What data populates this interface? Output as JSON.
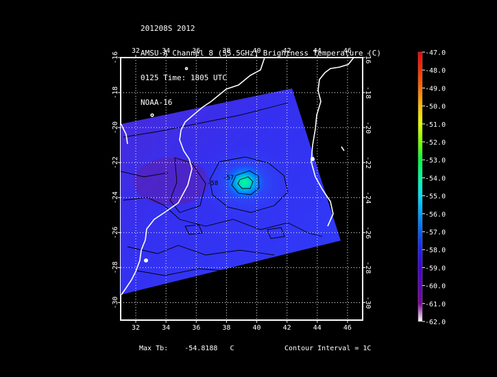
{
  "header": {
    "line1": "201208S 2012",
    "line2": "AMSU-A Channel 8 (55.5GHz) Brightness Temperature (C)",
    "line3": "0125 Time: 1805 UTC",
    "line4": "NOAA-16"
  },
  "map": {
    "lon_range": [
      31,
      47
    ],
    "lat_range": [
      -31,
      -16
    ],
    "lon_ticks": [
      "32",
      "34",
      "36",
      "38",
      "40",
      "42",
      "44",
      "46"
    ],
    "lat_ticks": [
      "-16",
      "-18",
      "-20",
      "-22",
      "-24",
      "-26",
      "-28",
      "-30"
    ],
    "contour_labels": [
      "-58",
      "-57"
    ],
    "colors": {
      "background": "#000000",
      "swath": "#3a2bf0",
      "coast": "#ffffff",
      "grid": "#ffffff",
      "contour": "#000000"
    }
  },
  "colorbar": {
    "labels": [
      "-47.0",
      "-48.0",
      "-49.0",
      "-50.0",
      "-51.0",
      "-52.0",
      "-53.0",
      "-54.0",
      "-55.0",
      "-56.0",
      "-57.0",
      "-58.0",
      "-59.0",
      "-60.0",
      "-61.0",
      "-62.0"
    ],
    "colors": [
      "#ff0000",
      "#ff3000",
      "#ff7000",
      "#ffc000",
      "#e0ff00",
      "#80ff00",
      "#00ff40",
      "#00ffa0",
      "#00e0ff",
      "#00a0ff",
      "#0060ff",
      "#2020ff",
      "#4000e0",
      "#6000c0",
      "#8000a0",
      "#ffffff"
    ]
  },
  "footer": {
    "max_label": "Max Tb:",
    "max_value": "-54.8188",
    "max_unit": "C",
    "contour_text": "Contour Interval = 1C"
  }
}
